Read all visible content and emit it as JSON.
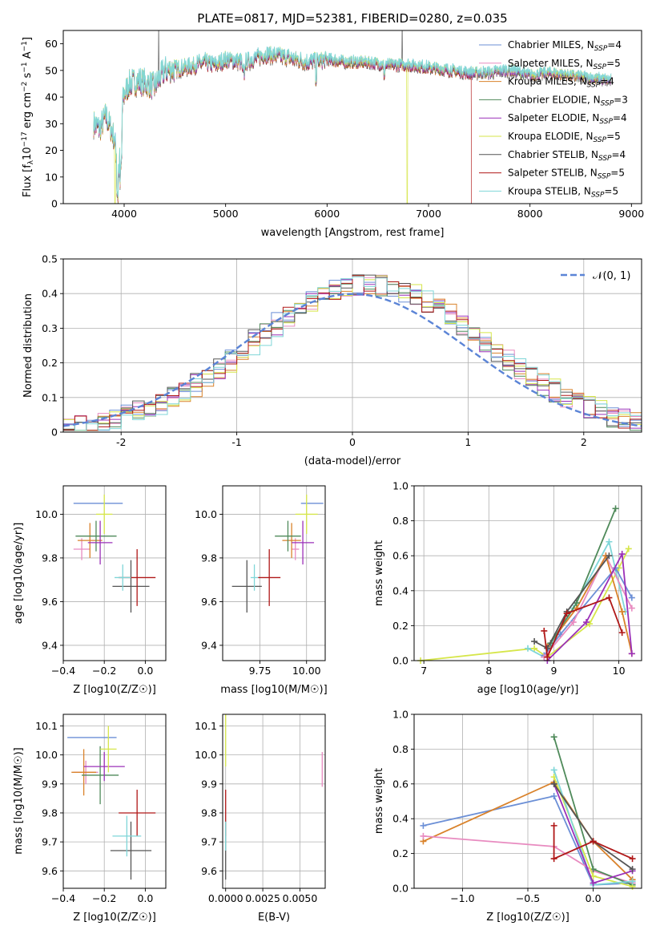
{
  "colors": {
    "chabrier_miles": "#6b8fd6",
    "salpeter_miles": "#e88bc0",
    "kroupa_miles": "#d9822b",
    "chabrier_elodie": "#4f8a5a",
    "salpeter_elodie": "#9b30b8",
    "kroupa_elodie": "#d6e64a",
    "chabrier_stelib": "#555555",
    "salpeter_stelib": "#b01818",
    "kroupa_stelib": "#7fd6d8",
    "normal_curve": "#5b84d6"
  },
  "chart_data": [
    {
      "id": "spectrum",
      "type": "line",
      "title": "PLATE=0817, MJD=52381, FIBERID=0280, z=0.035",
      "xlabel": "wavelength [Angstrom, rest frame]",
      "ylabel": "Flux [f_λ10^-17 erg cm^-2 s^-1 A^-1]",
      "xlim": [
        3400,
        9100
      ],
      "ylim": [
        0,
        65
      ],
      "xticks": [
        4000,
        5000,
        6000,
        7000,
        8000,
        9000
      ],
      "yticks": [
        0,
        10,
        20,
        30,
        40,
        50,
        60
      ],
      "grid": false,
      "legend_position": "top-right",
      "legend": [
        {
          "base": "Chabrier MILES, N",
          "sub": "SSP",
          "tail": "=4",
          "color_key": "chabrier_miles"
        },
        {
          "base": "Salpeter MILES, N",
          "sub": "SSP",
          "tail": "=5",
          "color_key": "salpeter_miles"
        },
        {
          "base": "Kroupa MILES, N",
          "sub": "SSP",
          "tail": "=4",
          "color_key": "kroupa_miles"
        },
        {
          "base": "Chabrier ELODIE, N",
          "sub": "SSP",
          "tail": "=3",
          "color_key": "chabrier_elodie"
        },
        {
          "base": "Salpeter ELODIE, N",
          "sub": "SSP",
          "tail": "=4",
          "color_key": "salpeter_elodie"
        },
        {
          "base": "Kroupa ELODIE, N",
          "sub": "SSP",
          "tail": "=5",
          "color_key": "kroupa_elodie"
        },
        {
          "base": "Chabrier STELIB, N",
          "sub": "SSP",
          "tail": "=4",
          "color_key": "chabrier_stelib"
        },
        {
          "base": "Salpeter STELIB, N",
          "sub": "SSP",
          "tail": "=5",
          "color_key": "salpeter_stelib"
        },
        {
          "base": "Kroupa STELIB, N",
          "sub": "SSP",
          "tail": "=5",
          "color_key": "kroupa_stelib"
        }
      ],
      "continuum": [
        [
          3700,
          30
        ],
        [
          3760,
          28
        ],
        [
          3820,
          33
        ],
        [
          3900,
          25
        ],
        [
          3950,
          12
        ],
        [
          3990,
          40
        ],
        [
          4050,
          45
        ],
        [
          4150,
          46
        ],
        [
          4300,
          44
        ],
        [
          4400,
          50
        ],
        [
          4600,
          51
        ],
        [
          4800,
          53
        ],
        [
          4900,
          52
        ],
        [
          5000,
          54
        ],
        [
          5200,
          53
        ],
        [
          5400,
          56
        ],
        [
          5600,
          55
        ],
        [
          5800,
          53
        ],
        [
          6000,
          54
        ],
        [
          6200,
          53
        ],
        [
          6400,
          53
        ],
        [
          6600,
          52
        ],
        [
          6800,
          52
        ],
        [
          7000,
          51
        ],
        [
          7200,
          50
        ],
        [
          7400,
          49
        ],
        [
          7600,
          49
        ],
        [
          7800,
          50
        ],
        [
          8000,
          48
        ],
        [
          8200,
          49
        ],
        [
          8400,
          48
        ],
        [
          8600,
          47
        ],
        [
          8800,
          46
        ]
      ],
      "features": {
        "kroupa_elodie_drops": [
          3910,
          6790
        ],
        "salpeter_stelib_cutoff": 7420,
        "chabrier_stelib_spike": 6740,
        "chabrier_stelib_spike_ymax": 65
      }
    },
    {
      "id": "residuals",
      "type": "histogram",
      "xlabel": "(data-model)/error",
      "ylabel": "Normed distribution",
      "xlim": [
        -2.5,
        2.5
      ],
      "ylim": [
        0,
        0.5
      ],
      "xticks": [
        -2,
        -1,
        0,
        1,
        2
      ],
      "yticks": [
        0.0,
        0.1,
        0.2,
        0.3,
        0.4,
        0.5
      ],
      "grid": true,
      "legend_position": "top-right",
      "legend_label": "𝒩(0, 1)",
      "bin_width": 0.1,
      "series_keys": [
        "chabrier_miles",
        "salpeter_miles",
        "kroupa_miles",
        "chabrier_elodie",
        "salpeter_elodie",
        "kroupa_elodie",
        "chabrier_stelib",
        "salpeter_stelib",
        "kroupa_stelib"
      ]
    },
    {
      "id": "age-vs-Z",
      "type": "scatter",
      "xlabel": "Z [log10(Z/Z☉)]",
      "ylabel": "age [log10(age/yr)]",
      "xlim": [
        -0.4,
        0.1
      ],
      "ylim": [
        9.33,
        10.13
      ],
      "xticks": [
        -0.4,
        -0.2,
        0.0
      ],
      "xtick_labels": [
        "−0.4",
        "−0.2",
        "0.0"
      ],
      "yticks": [
        9.4,
        9.6,
        9.8,
        10.0
      ],
      "ytick_labels": [
        "9.4",
        "9.6",
        "9.8",
        "10.0"
      ],
      "grid": true,
      "points": [
        {
          "key": "chabrier_miles",
          "x": -0.23,
          "y": 10.05,
          "ex": 0.12,
          "ey": 0.0
        },
        {
          "key": "salpeter_miles",
          "x": -0.31,
          "y": 9.84,
          "ex": 0.04,
          "ey": 0.05
        },
        {
          "key": "kroupa_miles",
          "x": -0.27,
          "y": 9.88,
          "ex": 0.06,
          "ey": 0.08
        },
        {
          "key": "chabrier_elodie",
          "x": -0.24,
          "y": 9.9,
          "ex": 0.1,
          "ey": 0.07
        },
        {
          "key": "salpeter_elodie",
          "x": -0.22,
          "y": 9.87,
          "ex": 0.06,
          "ey": 0.1
        },
        {
          "key": "kroupa_elodie",
          "x": -0.2,
          "y": 10.0,
          "ex": 0.04,
          "ey": 0.09
        },
        {
          "key": "chabrier_stelib",
          "x": -0.07,
          "y": 9.67,
          "ex": 0.09,
          "ey": 0.12
        },
        {
          "key": "salpeter_stelib",
          "x": -0.04,
          "y": 9.71,
          "ex": 0.09,
          "ey": 0.13
        },
        {
          "key": "kroupa_stelib",
          "x": -0.11,
          "y": 9.71,
          "ex": 0.04,
          "ey": 0.06
        }
      ]
    },
    {
      "id": "age-vs-mass",
      "type": "scatter",
      "xlabel": "mass [log10(M/M☉)]",
      "ylabel": "",
      "xlim": [
        9.55,
        10.1
      ],
      "ylim": [
        9.33,
        10.13
      ],
      "xticks": [
        9.75,
        10.0
      ],
      "xtick_labels": [
        "9.75",
        "10.00"
      ],
      "yticks": [
        9.4,
        9.6,
        9.8,
        10.0
      ],
      "ytick_labels": [
        "9.4",
        "9.6",
        "9.8",
        "10.0"
      ],
      "grid": true,
      "points": [
        {
          "key": "chabrier_miles",
          "x": 10.03,
          "y": 10.05,
          "ex": 0.06,
          "ey": 0.0
        },
        {
          "key": "salpeter_miles",
          "x": 9.94,
          "y": 9.84,
          "ex": 0.02,
          "ey": 0.05
        },
        {
          "key": "kroupa_miles",
          "x": 9.92,
          "y": 9.88,
          "ex": 0.05,
          "ey": 0.08
        },
        {
          "key": "chabrier_elodie",
          "x": 9.9,
          "y": 9.9,
          "ex": 0.07,
          "ey": 0.07
        },
        {
          "key": "salpeter_elodie",
          "x": 9.98,
          "y": 9.87,
          "ex": 0.06,
          "ey": 0.1
        },
        {
          "key": "kroupa_elodie",
          "x": 10.0,
          "y": 10.0,
          "ex": 0.06,
          "ey": 0.09
        },
        {
          "key": "chabrier_stelib",
          "x": 9.68,
          "y": 9.67,
          "ex": 0.08,
          "ey": 0.12
        },
        {
          "key": "salpeter_stelib",
          "x": 9.8,
          "y": 9.71,
          "ex": 0.06,
          "ey": 0.13
        },
        {
          "key": "kroupa_stelib",
          "x": 9.72,
          "y": 9.71,
          "ex": 0.02,
          "ey": 0.06
        }
      ]
    },
    {
      "id": "weight-vs-age",
      "type": "line",
      "xlabel": "age [log10(age/yr)]",
      "ylabel": "mass weight",
      "xlim": [
        6.85,
        10.35
      ],
      "ylim": [
        0,
        1.0
      ],
      "xticks": [
        7,
        8,
        9,
        10
      ],
      "xtick_labels": [
        "7",
        "8",
        "9",
        "10"
      ],
      "yticks": [
        0.0,
        0.2,
        0.4,
        0.6,
        0.8,
        1.0
      ],
      "ytick_labels": [
        "0.0",
        "0.2",
        "0.4",
        "0.6",
        "0.8",
        "1.0"
      ],
      "grid": true,
      "series": [
        {
          "key": "kroupa_elodie",
          "points": [
            [
              6.95,
              0.0
            ],
            [
              8.7,
              0.07
            ],
            [
              8.9,
              0.02
            ],
            [
              9.55,
              0.21
            ],
            [
              10.0,
              0.53
            ],
            [
              10.15,
              0.64
            ]
          ]
        },
        {
          "key": "kroupa_stelib",
          "points": [
            [
              8.6,
              0.07
            ],
            [
              8.85,
              0.02
            ],
            [
              9.3,
              0.3
            ],
            [
              9.85,
              0.68
            ],
            [
              10.1,
              0.28
            ]
          ]
        },
        {
          "key": "chabrier_miles",
          "points": [
            [
              8.85,
              0.03
            ],
            [
              9.1,
              0.15
            ],
            [
              9.95,
              0.53
            ],
            [
              10.2,
              0.36
            ]
          ]
        },
        {
          "key": "salpeter_miles",
          "points": [
            [
              8.85,
              0.02
            ],
            [
              9.3,
              0.22
            ],
            [
              9.8,
              0.6
            ],
            [
              10.2,
              0.3
            ]
          ]
        },
        {
          "key": "kroupa_miles",
          "points": [
            [
              8.9,
              0.08
            ],
            [
              9.35,
              0.3
            ],
            [
              9.8,
              0.6
            ],
            [
              10.05,
              0.28
            ],
            [
              10.2,
              0.04
            ]
          ]
        },
        {
          "key": "chabrier_elodie",
          "points": [
            [
              8.95,
              0.1
            ],
            [
              9.35,
              0.33
            ],
            [
              9.95,
              0.87
            ]
          ]
        },
        {
          "key": "salpeter_elodie",
          "points": [
            [
              8.9,
              0.0
            ],
            [
              9.5,
              0.22
            ],
            [
              10.05,
              0.61
            ],
            [
              10.2,
              0.04
            ]
          ]
        },
        {
          "key": "chabrier_stelib",
          "points": [
            [
              8.7,
              0.11
            ],
            [
              8.9,
              0.07
            ],
            [
              9.2,
              0.28
            ],
            [
              9.85,
              0.6
            ]
          ]
        },
        {
          "key": "salpeter_stelib",
          "points": [
            [
              8.85,
              0.17
            ],
            [
              8.9,
              0.02
            ],
            [
              9.2,
              0.27
            ],
            [
              9.85,
              0.36
            ],
            [
              10.05,
              0.16
            ]
          ]
        }
      ]
    },
    {
      "id": "mass-vs-Z",
      "type": "scatter",
      "xlabel": "Z [log10(Z/Z☉)]",
      "ylabel": "mass [log10(M/M☉)]",
      "xlim": [
        -0.4,
        0.1
      ],
      "ylim": [
        9.54,
        10.14
      ],
      "xticks": [
        -0.4,
        -0.2,
        0.0
      ],
      "xtick_labels": [
        "−0.4",
        "−0.2",
        "0.0"
      ],
      "yticks": [
        9.6,
        9.7,
        9.8,
        9.9,
        10.0,
        10.1
      ],
      "ytick_labels": [
        "9.6",
        "9.7",
        "9.8",
        "9.9",
        "10.0",
        "10.1"
      ],
      "grid": true,
      "points": [
        {
          "key": "chabrier_miles",
          "x": -0.26,
          "y": 10.06,
          "ex": 0.12,
          "ey": 0.0
        },
        {
          "key": "salpeter_miles",
          "x": -0.29,
          "y": 9.94,
          "ex": 0.06,
          "ey": 0.04
        },
        {
          "key": "kroupa_miles",
          "x": -0.3,
          "y": 9.94,
          "ex": 0.06,
          "ey": 0.08
        },
        {
          "key": "chabrier_elodie",
          "x": -0.22,
          "y": 9.93,
          "ex": 0.09,
          "ey": 0.1
        },
        {
          "key": "salpeter_elodie",
          "x": -0.2,
          "y": 9.96,
          "ex": 0.1,
          "ey": 0.05
        },
        {
          "key": "kroupa_elodie",
          "x": -0.18,
          "y": 10.02,
          "ex": 0.04,
          "ey": 0.08
        },
        {
          "key": "chabrier_stelib",
          "x": -0.07,
          "y": 9.67,
          "ex": 0.1,
          "ey": 0.1
        },
        {
          "key": "salpeter_stelib",
          "x": -0.04,
          "y": 9.8,
          "ex": 0.09,
          "ey": 0.08
        },
        {
          "key": "kroupa_stelib",
          "x": -0.09,
          "y": 9.72,
          "ex": 0.07,
          "ey": 0.07
        }
      ]
    },
    {
      "id": "mass-vs-ebv",
      "type": "scatter",
      "xlabel": "E(B-V)",
      "ylabel": "",
      "xlim": [
        -0.0002,
        0.0067
      ],
      "ylim": [
        9.54,
        10.14
      ],
      "xticks": [
        0.0,
        0.0025,
        0.005
      ],
      "xtick_labels": [
        "0.0000",
        "0.0025",
        "0.0050"
      ],
      "yticks": [
        9.6,
        9.7,
        9.8,
        9.9,
        10.0,
        10.1
      ],
      "ytick_labels": [
        "9.6",
        "9.7",
        "9.8",
        "9.9",
        "10.0",
        "10.1"
      ],
      "grid": true,
      "points": [
        {
          "key": "kroupa_elodie",
          "x": 0.0,
          "y": 10.05,
          "ex": 0.0,
          "ey": 0.09
        },
        {
          "key": "chabrier_stelib",
          "x": 0.0,
          "y": 9.67,
          "ex": 0.0,
          "ey": 0.1
        },
        {
          "key": "salpeter_stelib",
          "x": 0.0,
          "y": 9.8,
          "ex": 0.0,
          "ey": 0.08
        },
        {
          "key": "kroupa_stelib",
          "x": 0.0,
          "y": 9.72,
          "ex": 0.0,
          "ey": 0.05
        },
        {
          "key": "salpeter_miles",
          "x": 0.0065,
          "y": 9.95,
          "ex": 0.0,
          "ey": 0.06
        }
      ]
    },
    {
      "id": "weight-vs-Z",
      "type": "line",
      "xlabel": "Z [log10(Z/Z☉)]",
      "ylabel": "mass weight",
      "xlim": [
        -1.37,
        0.37
      ],
      "ylim": [
        0,
        1.0
      ],
      "xticks": [
        -1.0,
        -0.5,
        0.0
      ],
      "xtick_labels": [
        "−1.0",
        "−0.5",
        "0.0"
      ],
      "yticks": [
        0.0,
        0.2,
        0.4,
        0.6,
        0.8,
        1.0
      ],
      "ytick_labels": [
        "0.0",
        "0.2",
        "0.4",
        "0.6",
        "0.8",
        "1.0"
      ],
      "grid": true,
      "series": [
        {
          "key": "chabrier_miles",
          "points": [
            [
              -1.3,
              0.36
            ],
            [
              -0.3,
              0.53
            ],
            [
              0.0,
              0.02
            ],
            [
              0.3,
              0.03
            ]
          ]
        },
        {
          "key": "kroupa_miles",
          "points": [
            [
              -1.3,
              0.27
            ],
            [
              -0.3,
              0.61
            ],
            [
              0.0,
              0.27
            ],
            [
              0.3,
              0.05
            ]
          ]
        },
        {
          "key": "salpeter_miles",
          "points": [
            [
              -1.3,
              0.3
            ],
            [
              -0.3,
              0.24
            ],
            [
              0.0,
              0.1
            ],
            [
              0.3,
              0.03
            ]
          ]
        },
        {
          "key": "chabrier_elodie",
          "points": [
            [
              -0.3,
              0.87
            ],
            [
              0.0,
              0.11
            ],
            [
              0.3,
              0.02
            ]
          ]
        },
        {
          "key": "kroupa_elodie",
          "points": [
            [
              -0.3,
              0.64
            ],
            [
              0.0,
              0.07
            ],
            [
              0.3,
              0.01
            ]
          ]
        },
        {
          "key": "kroupa_stelib",
          "points": [
            [
              -0.3,
              0.68
            ],
            [
              0.0,
              0.02
            ],
            [
              0.3,
              0.04
            ]
          ]
        },
        {
          "key": "salpeter_elodie",
          "points": [
            [
              -0.3,
              0.6
            ],
            [
              0.0,
              0.03
            ],
            [
              0.3,
              0.1
            ]
          ]
        },
        {
          "key": "chabrier_stelib",
          "points": [
            [
              -0.3,
              0.6
            ],
            [
              0.0,
              0.27
            ],
            [
              0.3,
              0.11
            ]
          ]
        },
        {
          "key": "salpeter_stelib",
          "points": [
            [
              -0.3,
              0.36
            ],
            [
              -0.3,
              0.17
            ],
            [
              0.0,
              0.27
            ],
            [
              0.3,
              0.17
            ]
          ]
        }
      ]
    }
  ]
}
